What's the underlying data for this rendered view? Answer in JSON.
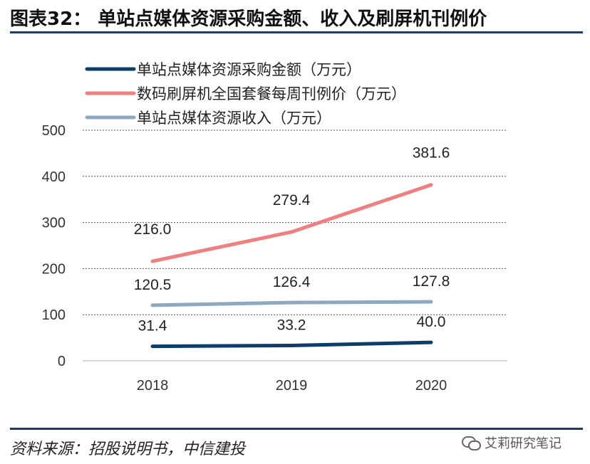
{
  "header": {
    "title": "图表32： 单站点媒体资源采购金额、收入及刷屏机刊例价"
  },
  "footer": {
    "source": "资料来源：招股说明书，中信建投",
    "watermark": "艾莉研究笔记"
  },
  "chart_data": {
    "type": "line",
    "title": "",
    "xlabel": "",
    "ylabel": "",
    "categories": [
      "2018",
      "2019",
      "2020"
    ],
    "ylim": [
      0,
      500
    ],
    "yticks": [
      0,
      100,
      200,
      300,
      400,
      500
    ],
    "grid": true,
    "legend_position": "top-left",
    "series": [
      {
        "name": "单站点媒体资源采购金额（万元）",
        "values": [
          31.4,
          33.2,
          40.0
        ],
        "labels": [
          "31.4",
          "33.2",
          "40.0"
        ],
        "color": "#0d3e6b"
      },
      {
        "name": "数码刷屏机全国套餐每周刊例价（万元）",
        "values": [
          216.0,
          279.4,
          381.6
        ],
        "labels": [
          "216.0",
          "279.4",
          "381.6"
        ],
        "color": "#f08080"
      },
      {
        "name": "单站点媒体资源收入（万元）",
        "values": [
          120.5,
          126.4,
          127.8
        ],
        "labels": [
          "120.5",
          "126.4",
          "127.8"
        ],
        "color": "#8ea9bf"
      }
    ]
  }
}
